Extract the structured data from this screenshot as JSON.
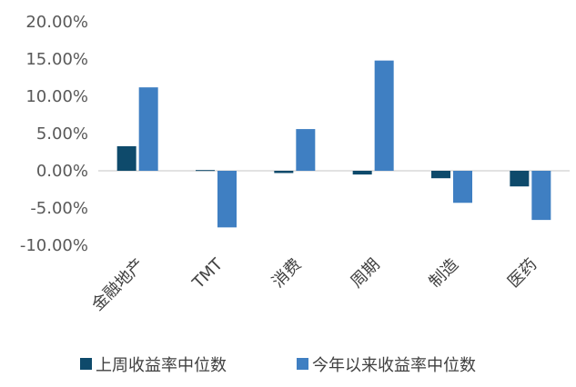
{
  "chart_data": {
    "type": "bar",
    "categories": [
      "金融地产",
      "TMT",
      "消费",
      "周期",
      "制造",
      "医药"
    ],
    "series": [
      {
        "name": "上周收益率中位数",
        "values": [
          3.3,
          0.1,
          -0.3,
          -0.5,
          -1.0,
          -2.1
        ]
      },
      {
        "name": "今年以来收益率中位数",
        "values": [
          11.2,
          -7.6,
          5.6,
          14.8,
          -4.3,
          -6.6
        ]
      }
    ],
    "yticks": [
      "20.00%",
      "15.00%",
      "10.00%",
      "5.00%",
      "0.00%",
      "-5.00%",
      "-10.00%"
    ],
    "ylim": [
      -10,
      20
    ],
    "title": "",
    "xlabel": "",
    "ylabel": "",
    "grid": false,
    "legend_position": "bottom",
    "colors": [
      "#0E4A6B",
      "#3F7FC2"
    ]
  }
}
